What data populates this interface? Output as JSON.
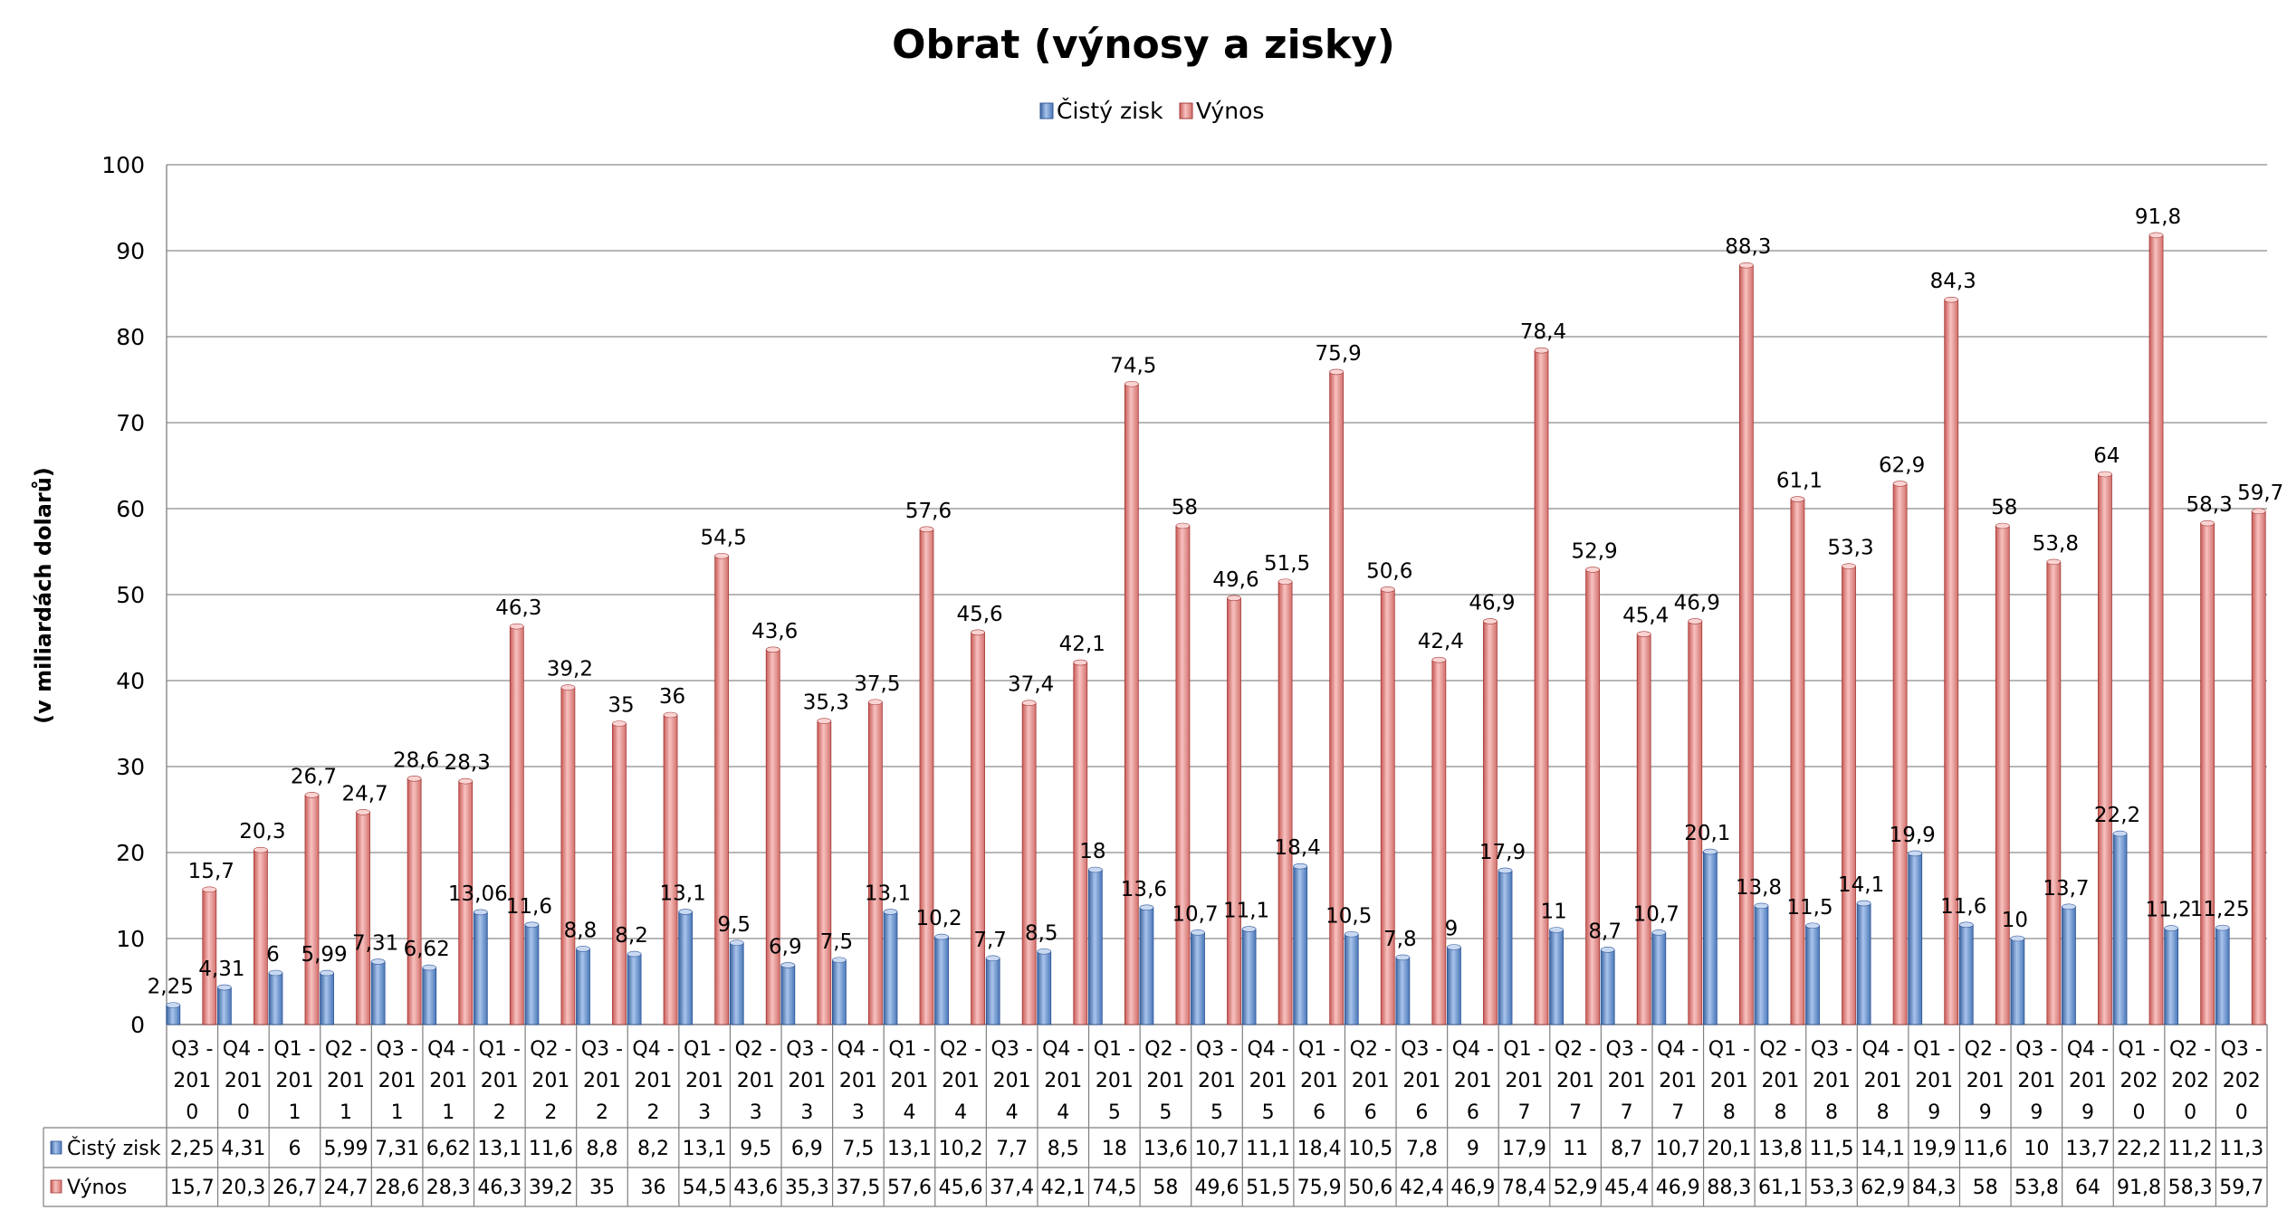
{
  "chart_data": {
    "type": "bar",
    "title": "Obrat (výnosy a zisky)",
    "ylabel": "(v miliardách dolarů)",
    "ylim": [
      0,
      100
    ],
    "yticks": [
      0,
      10,
      20,
      30,
      40,
      50,
      60,
      70,
      80,
      90,
      100
    ],
    "grid": true,
    "legend_position": "top",
    "categories": [
      "Q3 - 2010",
      "Q4 - 2010",
      "Q1 - 2011",
      "Q2 - 2011",
      "Q3 - 2011",
      "Q4 - 2011",
      "Q1 - 2012",
      "Q2 - 2012",
      "Q3 - 2012",
      "Q4 - 2012",
      "Q1 - 2013",
      "Q2 - 2013",
      "Q3 - 2013",
      "Q4 - 2013",
      "Q1 - 2014",
      "Q2 - 2014",
      "Q3 - 2014",
      "Q4 - 2014",
      "Q1 - 2015",
      "Q2 - 2015",
      "Q3 - 2015",
      "Q4 - 2015",
      "Q1 - 2016",
      "Q2 - 2016",
      "Q3 - 2016",
      "Q4 - 2016",
      "Q1 - 2017",
      "Q2 - 2017",
      "Q3 - 2017",
      "Q4 - 2017",
      "Q1 - 2018",
      "Q2 - 2018",
      "Q3 - 2018",
      "Q4 - 2018",
      "Q1 - 2019",
      "Q2 - 2019",
      "Q3 - 2019",
      "Q4 - 2019",
      "Q1 - 2020",
      "Q2 - 2020",
      "Q3 - 2020"
    ],
    "category_lines": [
      [
        "Q3 -",
        "201",
        "0"
      ],
      [
        "Q4 -",
        "201",
        "0"
      ],
      [
        "Q1 -",
        "201",
        "1"
      ],
      [
        "Q2 -",
        "201",
        "1"
      ],
      [
        "Q3 -",
        "201",
        "1"
      ],
      [
        "Q4 -",
        "201",
        "1"
      ],
      [
        "Q1 -",
        "201",
        "2"
      ],
      [
        "Q2 -",
        "201",
        "2"
      ],
      [
        "Q3 -",
        "201",
        "2"
      ],
      [
        "Q4 -",
        "201",
        "2"
      ],
      [
        "Q1 -",
        "201",
        "3"
      ],
      [
        "Q2 -",
        "201",
        "3"
      ],
      [
        "Q3 -",
        "201",
        "3"
      ],
      [
        "Q4 -",
        "201",
        "3"
      ],
      [
        "Q1 -",
        "201",
        "4"
      ],
      [
        "Q2 -",
        "201",
        "4"
      ],
      [
        "Q3 -",
        "201",
        "4"
      ],
      [
        "Q4 -",
        "201",
        "4"
      ],
      [
        "Q1 -",
        "201",
        "5"
      ],
      [
        "Q2 -",
        "201",
        "5"
      ],
      [
        "Q3 -",
        "201",
        "5"
      ],
      [
        "Q4 -",
        "201",
        "5"
      ],
      [
        "Q1 -",
        "201",
        "6"
      ],
      [
        "Q2 -",
        "201",
        "6"
      ],
      [
        "Q3 -",
        "201",
        "6"
      ],
      [
        "Q4 -",
        "201",
        "6"
      ],
      [
        "Q1 -",
        "201",
        "7"
      ],
      [
        "Q2 -",
        "201",
        "7"
      ],
      [
        "Q3 -",
        "201",
        "7"
      ],
      [
        "Q4 -",
        "201",
        "7"
      ],
      [
        "Q1 -",
        "201",
        "8"
      ],
      [
        "Q2 -",
        "201",
        "8"
      ],
      [
        "Q3 -",
        "201",
        "8"
      ],
      [
        "Q4 -",
        "201",
        "8"
      ],
      [
        "Q1 -",
        "201",
        "9"
      ],
      [
        "Q2 -",
        "201",
        "9"
      ],
      [
        "Q3 -",
        "201",
        "9"
      ],
      [
        "Q4 -",
        "201",
        "9"
      ],
      [
        "Q1 -",
        "202",
        "0"
      ],
      [
        "Q2 -",
        "202",
        "0"
      ],
      [
        "Q3 -",
        "202",
        "0"
      ]
    ],
    "series": [
      {
        "name": "Čistý zisk",
        "color": "#4f81bd",
        "values": [
          2.25,
          4.31,
          6,
          5.99,
          7.31,
          6.62,
          13.06,
          11.6,
          8.8,
          8.2,
          13.1,
          9.5,
          6.9,
          7.5,
          13.1,
          10.2,
          7.7,
          8.5,
          18,
          13.6,
          10.7,
          11.1,
          18.4,
          10.5,
          7.8,
          9,
          17.9,
          11,
          8.7,
          10.7,
          20.1,
          13.8,
          11.5,
          14.1,
          19.9,
          11.6,
          10,
          13.7,
          22.2,
          11.2,
          11.25
        ],
        "labels": [
          "2,25",
          "4,31",
          "6",
          "5,99",
          "7,31",
          "6,62",
          "13,06",
          "11,6",
          "8,8",
          "8,2",
          "13,1",
          "9,5",
          "6,9",
          "7,5",
          "13,1",
          "10,2",
          "7,7",
          "8,5",
          "18",
          "13,6",
          "10,7",
          "11,1",
          "18,4",
          "10,5",
          "7,8",
          "9",
          "17,9",
          "11",
          "8,7",
          "10,7",
          "20,1",
          "13,8",
          "11,5",
          "14,1",
          "19,9",
          "11,6",
          "10",
          "13,7",
          "22,2",
          "11,2",
          "11,25"
        ],
        "table_labels": [
          "2,25",
          "4,31",
          "6",
          "5,99",
          "7,31",
          "6,62",
          "13,1",
          "11,6",
          "8,8",
          "8,2",
          "13,1",
          "9,5",
          "6,9",
          "7,5",
          "13,1",
          "10,2",
          "7,7",
          "8,5",
          "18",
          "13,6",
          "10,7",
          "11,1",
          "18,4",
          "10,5",
          "7,8",
          "9",
          "17,9",
          "11",
          "8,7",
          "10,7",
          "20,1",
          "13,8",
          "11,5",
          "14,1",
          "19,9",
          "11,6",
          "10",
          "13,7",
          "22,2",
          "11,2",
          "11,3"
        ]
      },
      {
        "name": "Výnos",
        "color": "#c0504d",
        "values": [
          15.7,
          20.3,
          26.7,
          24.7,
          28.6,
          28.3,
          46.3,
          39.2,
          35,
          36,
          54.5,
          43.6,
          35.3,
          37.5,
          57.6,
          45.6,
          37.4,
          42.1,
          74.5,
          58,
          49.6,
          51.5,
          75.9,
          50.6,
          42.4,
          46.9,
          78.4,
          52.9,
          45.4,
          46.9,
          88.3,
          61.1,
          53.3,
          62.9,
          84.3,
          58,
          53.8,
          64,
          91.8,
          58.3,
          59.7
        ],
        "labels": [
          "15,7",
          "20,3",
          "26,7",
          "24,7",
          "28,6",
          "28,3",
          "46,3",
          "39,2",
          "35",
          "36",
          "54,5",
          "43,6",
          "35,3",
          "37,5",
          "57,6",
          "45,6",
          "37,4",
          "42,1",
          "74,5",
          "58",
          "49,6",
          "51,5",
          "75,9",
          "50,6",
          "42,4",
          "46,9",
          "78,4",
          "52,9",
          "45,4",
          "46,9",
          "88,3",
          "61,1",
          "53,3",
          "62,9",
          "84,3",
          "58",
          "53,8",
          "64",
          "91,8",
          "58,3",
          "59,7"
        ],
        "table_labels": [
          "15,7",
          "20,3",
          "26,7",
          "24,7",
          "28,6",
          "28,3",
          "46,3",
          "39,2",
          "35",
          "36",
          "54,5",
          "43,6",
          "35,3",
          "37,5",
          "57,6",
          "45,6",
          "37,4",
          "42,1",
          "74,5",
          "58",
          "49,6",
          "51,5",
          "75,9",
          "50,6",
          "42,4",
          "46,9",
          "78,4",
          "52,9",
          "45,4",
          "46,9",
          "88,3",
          "61,1",
          "53,3",
          "62,9",
          "84,3",
          "58",
          "53,8",
          "64",
          "91,8",
          "58,3",
          "59,7"
        ]
      }
    ]
  }
}
